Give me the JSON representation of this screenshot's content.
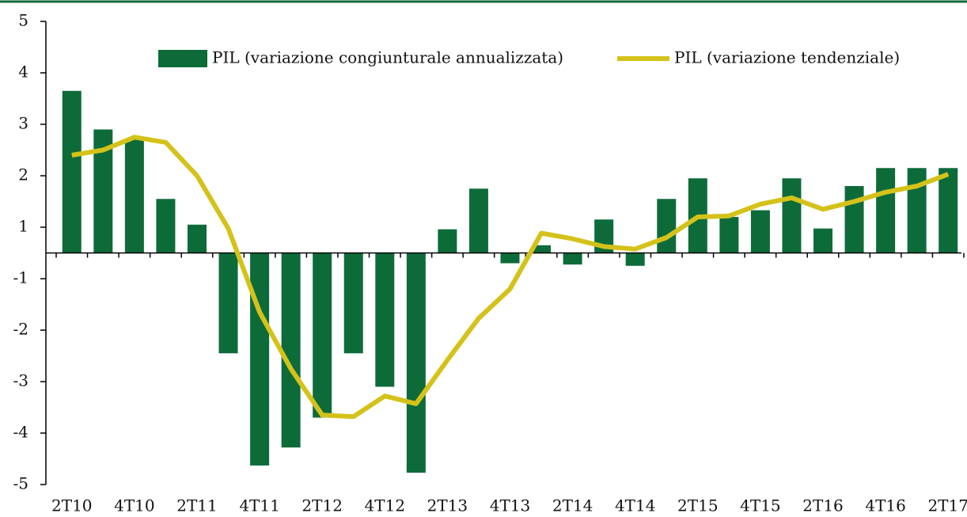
{
  "chart_data": {
    "type": "bar_line",
    "categories": [
      "2T10",
      null,
      "4T10",
      null,
      "2T11",
      null,
      "4T11",
      null,
      "2T12",
      null,
      "4T12",
      null,
      "2T13",
      null,
      "4T13",
      null,
      "2T14",
      null,
      "4T14",
      null,
      "2T15",
      null,
      "4T15",
      null,
      "2T16",
      null,
      "4T16",
      null,
      "2T17"
    ],
    "series": [
      {
        "name": "PIL (variazione congiunturale annualizzata)",
        "type": "bar",
        "color": "#0d6b3a",
        "values": [
          3.65,
          2.9,
          2.7,
          1.55,
          1.05,
          -2.45,
          -4.63,
          -4.28,
          -3.7,
          -2.45,
          -3.1,
          -4.77,
          0.92,
          1.75,
          -0.4,
          0.3,
          -0.45,
          1.15,
          -0.5,
          1.55,
          1.95,
          1.2,
          1.33,
          1.95,
          0.95,
          1.8,
          2.15,
          2.15,
          2.15
        ]
      },
      {
        "name": "PIL (variazione tendenziale)",
        "type": "line",
        "color": "#d4c21a",
        "values": [
          2.4,
          2.5,
          2.75,
          2.65,
          2.0,
          0.95,
          -1.65,
          -2.75,
          -3.65,
          -3.68,
          -3.28,
          -3.43,
          -2.58,
          -1.77,
          -1.2,
          0.77,
          0.55,
          0.25,
          0.15,
          0.6,
          1.2,
          1.22,
          1.45,
          1.57,
          1.35,
          1.5,
          1.68,
          1.8,
          2.03
        ]
      }
    ],
    "ylim": [
      -5,
      5
    ],
    "yticks": [
      5,
      4,
      3,
      2,
      1,
      -1,
      -2,
      -3,
      -4,
      -5
    ]
  }
}
